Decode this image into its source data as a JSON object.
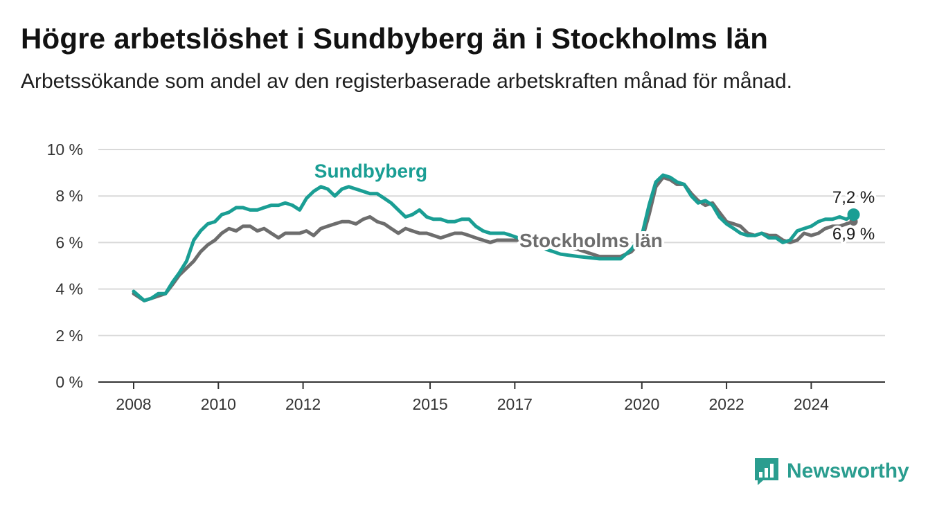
{
  "title": "Högre arbetslöshet i Sundbyberg än i Stockholms län",
  "subtitle": "Arbetssökande som andel av den registerbaserade arbetskraften månad för månad.",
  "brand": {
    "name": "Newsworthy",
    "icon": "bar-chart-logo-icon",
    "color": "#2a9d8f"
  },
  "chart_data": {
    "type": "line",
    "x_unit": "year (decimal)",
    "xlim": [
      2007.4,
      2025.8
    ],
    "ylim": [
      0,
      10
    ],
    "y_ticks": [
      0,
      2,
      4,
      6,
      8,
      10
    ],
    "y_tick_labels": [
      "0 %",
      "2 %",
      "4 %",
      "6 %",
      "8 %",
      "10 %"
    ],
    "x_ticks": [
      2008,
      2010,
      2012,
      2015,
      2017,
      2020,
      2022,
      2024
    ],
    "x_tick_labels": [
      "2008",
      "2010",
      "2012",
      "2015",
      "2017",
      "2020",
      "2022",
      "2024"
    ],
    "grid": true,
    "legend": "inline labels",
    "series": [
      {
        "name": "Stockholms län",
        "color": "#6d6d6d",
        "x": [
          2008.0,
          2008.25,
          2008.42,
          2008.58,
          2008.75,
          2008.92,
          2009.08,
          2009.25,
          2009.42,
          2009.58,
          2009.75,
          2009.92,
          2010.08,
          2010.25,
          2010.42,
          2010.58,
          2010.75,
          2010.92,
          2011.08,
          2011.25,
          2011.42,
          2011.58,
          2011.75,
          2011.92,
          2012.08,
          2012.25,
          2012.42,
          2012.58,
          2012.75,
          2012.92,
          2013.08,
          2013.25,
          2013.42,
          2013.58,
          2013.75,
          2013.92,
          2014.08,
          2014.25,
          2014.42,
          2014.58,
          2014.75,
          2014.92,
          2015.08,
          2015.25,
          2015.42,
          2015.58,
          2015.75,
          2015.92,
          2016.08,
          2016.25,
          2016.42,
          2016.58,
          2016.75,
          2016.92,
          2017.08,
          2017.25,
          2017.42,
          2017.58,
          2017.75,
          2017.92,
          2018.08,
          2018.5,
          2019.0,
          2019.5,
          2019.75,
          2020.0,
          2020.17,
          2020.33,
          2020.5,
          2020.67,
          2020.83,
          2021.0,
          2021.17,
          2021.33,
          2021.5,
          2021.67,
          2021.83,
          2022.0,
          2022.17,
          2022.33,
          2022.5,
          2022.67,
          2022.83,
          2023.0,
          2023.17,
          2023.33,
          2023.5,
          2023.67,
          2023.83,
          2024.0,
          2024.17,
          2024.33,
          2024.5,
          2024.67,
          2024.83,
          2025.0
        ],
        "values": [
          3.8,
          3.5,
          3.6,
          3.7,
          3.8,
          4.2,
          4.6,
          4.9,
          5.2,
          5.6,
          5.9,
          6.1,
          6.4,
          6.6,
          6.5,
          6.7,
          6.7,
          6.5,
          6.6,
          6.4,
          6.2,
          6.4,
          6.4,
          6.4,
          6.5,
          6.3,
          6.6,
          6.7,
          6.8,
          6.9,
          6.9,
          6.8,
          7.0,
          7.1,
          6.9,
          6.8,
          6.6,
          6.4,
          6.6,
          6.5,
          6.4,
          6.4,
          6.3,
          6.2,
          6.3,
          6.4,
          6.4,
          6.3,
          6.2,
          6.1,
          6.0,
          6.1,
          6.1,
          6.1,
          6.1,
          6.0,
          6.1,
          6.0,
          6.0,
          6.0,
          5.9,
          5.7,
          5.4,
          5.4,
          5.6,
          6.1,
          7.2,
          8.4,
          8.8,
          8.7,
          8.5,
          8.5,
          8.1,
          7.8,
          7.6,
          7.7,
          7.3,
          6.9,
          6.8,
          6.7,
          6.4,
          6.3,
          6.4,
          6.3,
          6.3,
          6.1,
          6.0,
          6.1,
          6.4,
          6.3,
          6.4,
          6.6,
          6.7,
          6.7,
          6.8,
          6.9
        ],
        "end_label": "6,9 %"
      },
      {
        "name": "Sundbyberg",
        "color": "#1a9e94",
        "x": [
          2008.0,
          2008.25,
          2008.42,
          2008.58,
          2008.75,
          2008.92,
          2009.08,
          2009.25,
          2009.42,
          2009.58,
          2009.75,
          2009.92,
          2010.08,
          2010.25,
          2010.42,
          2010.58,
          2010.75,
          2010.92,
          2011.08,
          2011.25,
          2011.42,
          2011.58,
          2011.75,
          2011.92,
          2012.08,
          2012.25,
          2012.42,
          2012.58,
          2012.75,
          2012.92,
          2013.08,
          2013.25,
          2013.42,
          2013.58,
          2013.75,
          2013.92,
          2014.08,
          2014.25,
          2014.42,
          2014.58,
          2014.75,
          2014.92,
          2015.08,
          2015.25,
          2015.42,
          2015.58,
          2015.75,
          2015.92,
          2016.08,
          2016.25,
          2016.42,
          2016.58,
          2016.75,
          2016.92,
          2017.08,
          2017.25,
          2017.42,
          2017.58,
          2017.75,
          2017.92,
          2018.08,
          2018.5,
          2019.0,
          2019.5,
          2019.75,
          2020.0,
          2020.17,
          2020.33,
          2020.5,
          2020.67,
          2020.83,
          2021.0,
          2021.17,
          2021.33,
          2021.5,
          2021.67,
          2021.83,
          2022.0,
          2022.17,
          2022.33,
          2022.5,
          2022.67,
          2022.83,
          2023.0,
          2023.17,
          2023.33,
          2023.5,
          2023.67,
          2023.83,
          2024.0,
          2024.17,
          2024.33,
          2024.5,
          2024.67,
          2024.83,
          2025.0
        ],
        "values": [
          3.9,
          3.5,
          3.6,
          3.8,
          3.8,
          4.3,
          4.7,
          5.2,
          6.1,
          6.5,
          6.8,
          6.9,
          7.2,
          7.3,
          7.5,
          7.5,
          7.4,
          7.4,
          7.5,
          7.6,
          7.6,
          7.7,
          7.6,
          7.4,
          7.9,
          8.2,
          8.4,
          8.3,
          8.0,
          8.3,
          8.4,
          8.3,
          8.2,
          8.1,
          8.1,
          7.9,
          7.7,
          7.4,
          7.1,
          7.2,
          7.4,
          7.1,
          7.0,
          7.0,
          6.9,
          6.9,
          7.0,
          7.0,
          6.7,
          6.5,
          6.4,
          6.4,
          6.4,
          6.3,
          6.2,
          6.0,
          6.1,
          5.9,
          5.7,
          5.6,
          5.5,
          5.4,
          5.3,
          5.3,
          5.7,
          6.3,
          7.6,
          8.6,
          8.9,
          8.8,
          8.6,
          8.5,
          8.0,
          7.7,
          7.8,
          7.6,
          7.1,
          6.8,
          6.6,
          6.4,
          6.3,
          6.3,
          6.4,
          6.2,
          6.2,
          6.0,
          6.1,
          6.5,
          6.6,
          6.7,
          6.9,
          7.0,
          7.0,
          7.1,
          7.0,
          7.2
        ],
        "end_label": "7,2 %"
      }
    ],
    "annotations": [
      {
        "series": "Sundbyberg",
        "text": "Sundbyberg",
        "at_x": 2013.6,
        "at_y": 8.8
      },
      {
        "series": "Stockholms län",
        "text": "Stockholms län",
        "at_x": 2018.8,
        "at_y": 5.8
      }
    ]
  }
}
